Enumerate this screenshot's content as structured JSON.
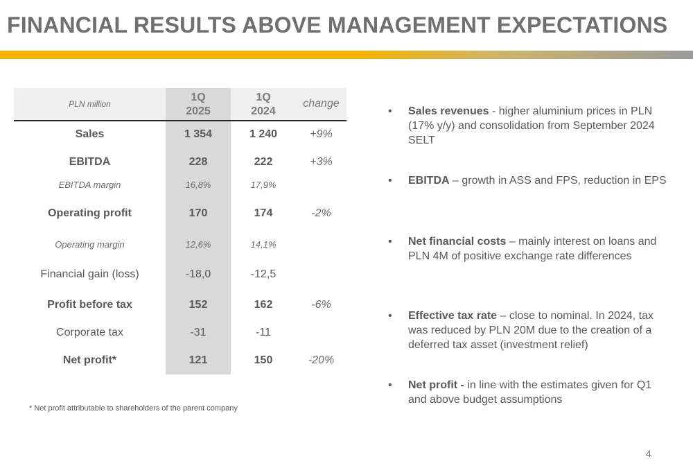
{
  "title": "FINANCIAL RESULTS ABOVE MANAGEMENT EXPECTATIONS",
  "table": {
    "unit": "PLN million",
    "col1": [
      "1Q",
      "2025"
    ],
    "col2": [
      "1Q",
      "2024"
    ],
    "col3": "change",
    "rows": [
      {
        "label": "Sales",
        "v2025": "1 354",
        "v2024": "1 240",
        "change": "+9%"
      },
      {
        "label": "EBITDA",
        "v2025": "228",
        "v2024": "222",
        "change": "+3%"
      },
      {
        "label": "EBITDA margin",
        "v2025": "16,8%",
        "v2024": "17,9%",
        "change": ""
      },
      {
        "label": "Operating profit",
        "v2025": "170",
        "v2024": "174",
        "change": "-2%"
      },
      {
        "label": "Operating margin",
        "v2025": "12,6%",
        "v2024": "14,1%",
        "change": ""
      },
      {
        "label": "Financial gain (loss)",
        "v2025": "-18,0",
        "v2024": "-12,5",
        "change": ""
      },
      {
        "label": "Profit before tax",
        "v2025": "152",
        "v2024": "162",
        "change": "-6%"
      },
      {
        "label": "Corporate tax",
        "v2025": "-31",
        "v2024": "-11",
        "change": ""
      },
      {
        "label": "Net profit*",
        "v2025": "121",
        "v2024": "150",
        "change": "-20%"
      }
    ]
  },
  "footnote": "* Net profit attributable to shareholders of the parent company",
  "bullets": [
    {
      "bold": "Sales revenues",
      "text": " - higher aluminium prices in PLN (17% y/y) and consolidation from September 2024 SELT"
    },
    {
      "bold": "EBITDA",
      "text": " – growth in ASS and FPS, reduction in EPS"
    },
    {
      "bold": "Net financial costs",
      "text": " – mainly interest on loans and PLN 4M of positive exchange rate differences"
    },
    {
      "bold": "Effective tax rate",
      "text": " – close to nominal. In 2024, tax was reduced by PLN 20M due to the creation of a deferred tax asset (investment relief)"
    },
    {
      "bold": "Net profit -",
      "text": " in line with the estimates given for Q1 and above budget assumptions"
    }
  ],
  "page_number": "4",
  "colors": {
    "accent": "#f5b400",
    "title": "#6f6f6f",
    "text": "#595959"
  }
}
